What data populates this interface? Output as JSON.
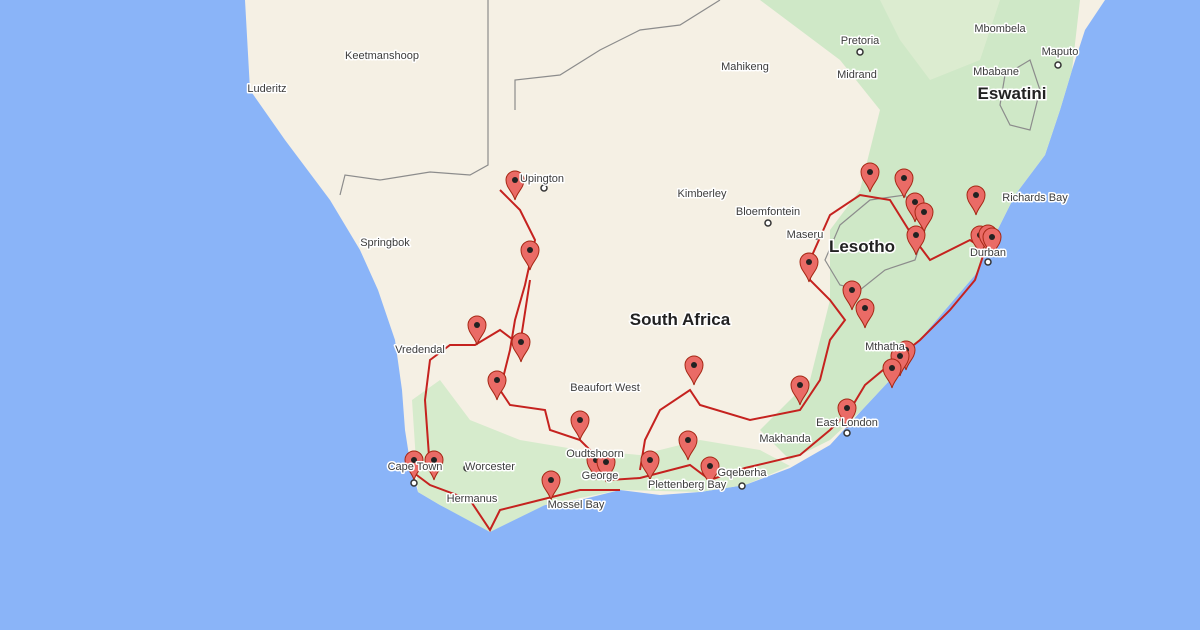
{
  "countries": [
    "South Africa",
    "Lesotho",
    "Eswatini"
  ],
  "places": [
    "Pretoria",
    "Midrand",
    "Mbombela",
    "Mbabane",
    "Maputo",
    "Mahikeng",
    "Luderitz",
    "Keetmanshoop",
    "Upington",
    "Kimberley",
    "Bloemfontein",
    "Maseru",
    "Richards Bay",
    "Durban",
    "Springbok",
    "Vredendal",
    "Beaufort West",
    "Mthatha",
    "East London",
    "Makhanda",
    "Oudtshoorn",
    "Gqeberha",
    "Cape Town",
    "Worcester",
    "George",
    "Plettenberg Bay",
    "Hermanus",
    "Mossel Bay"
  ]
}
